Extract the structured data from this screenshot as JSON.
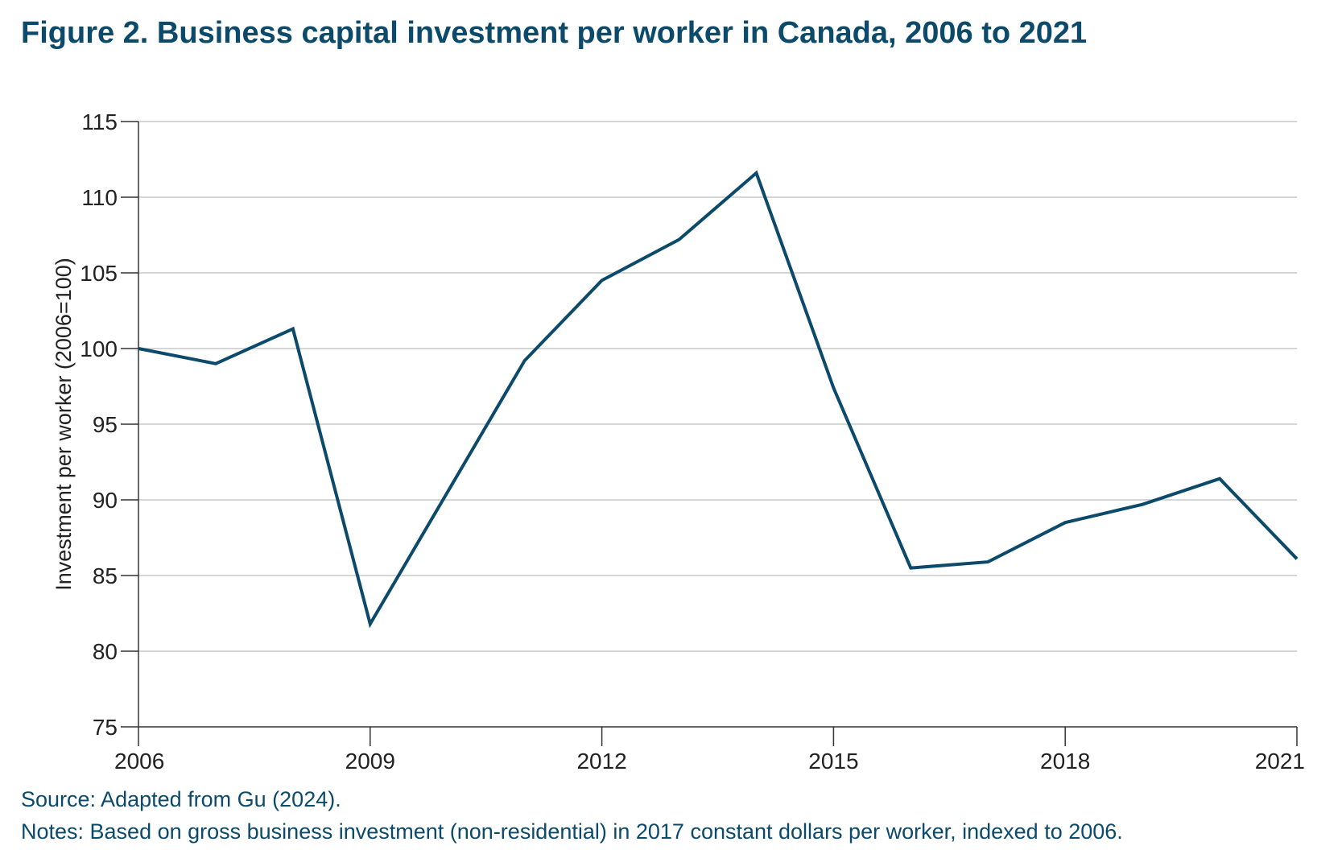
{
  "chart_data": {
    "type": "line",
    "title": "Figure 2. Business capital investment per worker in Canada, 2006 to 2021",
    "xlabel": "",
    "ylabel": "Investment per worker (2006=100)",
    "x": [
      2006,
      2007,
      2008,
      2009,
      2010,
      2011,
      2012,
      2013,
      2014,
      2015,
      2016,
      2017,
      2018,
      2019,
      2020,
      2021
    ],
    "series": [
      {
        "values": [
          100,
          99.0,
          101.3,
          81.8,
          90.5,
          99.2,
          104.5,
          107.2,
          111.6,
          97.4,
          85.5,
          85.9,
          88.5,
          89.7,
          91.4,
          86.1
        ]
      }
    ],
    "xticks": [
      "2006",
      "2009",
      "2012",
      "2015",
      "2018",
      "2021"
    ],
    "yticks": [
      "75",
      "80",
      "85",
      "90",
      "95",
      "100",
      "105",
      "110",
      "115"
    ],
    "xlim": [
      2006,
      2021
    ],
    "ylim": [
      75,
      115
    ],
    "grid": "horizontal",
    "line_color": "#0b4a6b"
  },
  "source": "Source: Adapted from Gu (2024).",
  "notes": "Notes: Based on gross business investment (non-residential) in 2017 constant dollars per worker, indexed to 2006."
}
